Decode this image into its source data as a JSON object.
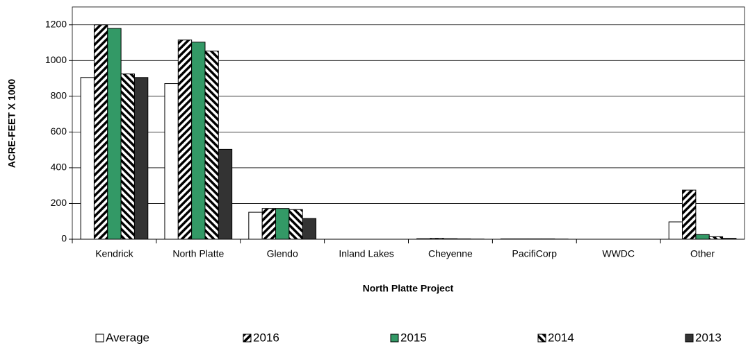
{
  "chart_data": {
    "type": "bar",
    "x_label": "North Platte Project",
    "y_label": "ACRE-FEET X 1000",
    "categories": [
      "Kendrick",
      "North Platte",
      "Glendo",
      "Inland Lakes",
      "Cheyenne",
      "PacifiCorp",
      "WWDC",
      "Other"
    ],
    "series": [
      {
        "name": "Average",
        "color": "#ffffff",
        "values": [
          905,
          871,
          151,
          0,
          3,
          2,
          0,
          97
        ]
      },
      {
        "name": "2016",
        "color": "#ffffff",
        "hatch": "forward",
        "values": [
          1200,
          1115,
          172,
          0,
          5,
          2,
          0,
          275
        ]
      },
      {
        "name": "2015",
        "color": "#339966",
        "values": [
          1180,
          1103,
          172,
          0,
          3,
          2,
          0,
          26
        ]
      },
      {
        "name": "2014",
        "color": "#ffffff",
        "hatch": "backward",
        "values": [
          925,
          1053,
          166,
          0,
          2,
          2,
          0,
          14
        ]
      },
      {
        "name": "2013",
        "color": "#333333",
        "values": [
          905,
          503,
          116,
          0,
          1,
          1,
          0,
          5
        ]
      }
    ],
    "ylim": [
      0,
      1300
    ],
    "yticks": [
      0,
      200,
      400,
      600,
      800,
      1000,
      1200
    ],
    "grid": true,
    "legend": "bottom"
  }
}
